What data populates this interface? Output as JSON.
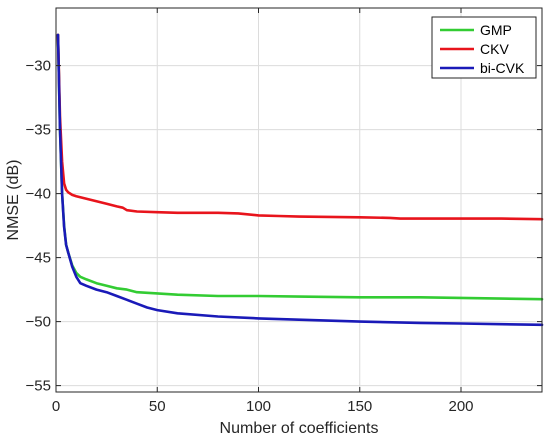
{
  "chart_data": {
    "type": "line",
    "title": "",
    "xlabel": "Number of coefficients",
    "ylabel": "NMSE (dB)",
    "xlim": [
      0,
      240
    ],
    "ylim": [
      -55.5,
      -25.5
    ],
    "xticks": [
      0,
      50,
      100,
      150,
      200
    ],
    "yticks": [
      -30,
      -35,
      -40,
      -45,
      -50,
      -55
    ],
    "grid": true,
    "legend_position": "top-right",
    "series": [
      {
        "name": "GMP",
        "color": "#33cc33",
        "x": [
          1,
          2,
          3,
          4,
          5,
          6,
          8,
          10,
          12,
          15,
          20,
          25,
          30,
          35,
          40,
          50,
          60,
          80,
          100,
          120,
          150,
          180,
          200,
          220,
          240
        ],
        "y": [
          -27.6,
          -35.0,
          -40.0,
          -42.5,
          -44.0,
          -44.6,
          -45.6,
          -46.2,
          -46.5,
          -46.7,
          -47.0,
          -47.2,
          -47.4,
          -47.5,
          -47.7,
          -47.8,
          -47.9,
          -48.0,
          -48.0,
          -48.05,
          -48.1,
          -48.1,
          -48.15,
          -48.2,
          -48.25
        ]
      },
      {
        "name": "CKV",
        "color": "#e8141c",
        "x": [
          1,
          2,
          3,
          4,
          5,
          6,
          8,
          10,
          15,
          20,
          25,
          30,
          33,
          35,
          40,
          50,
          60,
          80,
          90,
          100,
          110,
          120,
          150,
          165,
          170,
          200,
          220,
          240
        ],
        "y": [
          -27.6,
          -34.0,
          -37.5,
          -39.2,
          -39.7,
          -39.9,
          -40.1,
          -40.2,
          -40.4,
          -40.6,
          -40.8,
          -41.0,
          -41.1,
          -41.3,
          -41.4,
          -41.45,
          -41.5,
          -41.5,
          -41.55,
          -41.7,
          -41.75,
          -41.8,
          -41.85,
          -41.9,
          -41.95,
          -41.95,
          -41.95,
          -42.0
        ]
      },
      {
        "name": "bi-CVK",
        "color": "#1a1ab8",
        "x": [
          1,
          2,
          3,
          4,
          5,
          6,
          8,
          10,
          12,
          15,
          20,
          25,
          30,
          35,
          40,
          45,
          50,
          60,
          80,
          100,
          120,
          150,
          180,
          200,
          220,
          240
        ],
        "y": [
          -27.6,
          -35.0,
          -40.0,
          -42.6,
          -44.0,
          -44.6,
          -45.7,
          -46.5,
          -47.0,
          -47.2,
          -47.5,
          -47.7,
          -48.0,
          -48.3,
          -48.6,
          -48.9,
          -49.1,
          -49.35,
          -49.6,
          -49.75,
          -49.85,
          -50.0,
          -50.1,
          -50.15,
          -50.2,
          -50.25
        ]
      }
    ]
  }
}
